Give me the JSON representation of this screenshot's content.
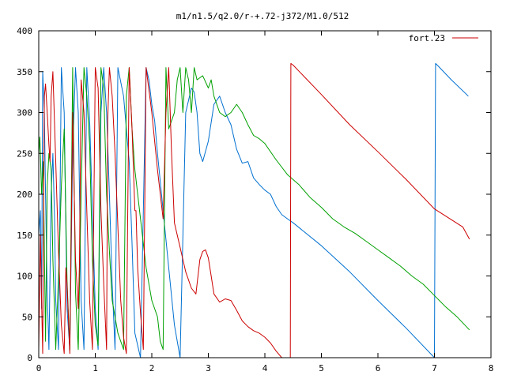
{
  "chart_data": {
    "type": "line",
    "title": "m1/n1.5/q2.0/r-+.72-j372/M1.0/512",
    "xlabel": "",
    "ylabel": "",
    "xlim": [
      0,
      8
    ],
    "ylim": [
      0,
      400
    ],
    "xticks": [
      0,
      1,
      2,
      3,
      4,
      5,
      6,
      7,
      8
    ],
    "yticks": [
      0,
      50,
      100,
      150,
      200,
      250,
      300,
      350,
      400
    ],
    "grid": false,
    "legend": {
      "position": "top-right",
      "entries": [
        "fort.23"
      ]
    },
    "series": [
      {
        "name": "fort.23",
        "color": "#cc0000",
        "x": [
          0.0,
          0.03,
          0.05,
          0.07,
          0.1,
          0.12,
          0.15,
          0.18,
          0.2,
          0.22,
          0.25,
          0.3,
          0.35,
          0.4,
          0.45,
          0.48,
          0.5,
          0.55,
          0.6,
          0.65,
          0.7,
          0.72,
          0.75,
          0.8,
          0.85,
          0.9,
          0.95,
          1.0,
          1.05,
          1.1,
          1.15,
          1.2,
          1.22,
          1.25,
          1.3,
          1.35,
          1.4,
          1.45,
          1.5,
          1.55,
          1.6,
          1.65,
          1.7,
          1.72,
          1.75,
          1.8,
          1.85,
          1.9,
          2.0,
          2.1,
          2.2,
          2.25,
          2.3,
          2.35,
          2.4,
          2.5,
          2.6,
          2.7,
          2.78,
          2.85,
          2.9,
          2.95,
          3.0,
          3.05,
          3.1,
          3.2,
          3.3,
          3.4,
          3.5,
          3.6,
          3.7,
          3.8,
          3.9,
          4.0,
          4.1,
          4.2,
          4.3,
          4.4,
          4.45,
          4.46,
          4.5,
          5.0,
          5.5,
          6.0,
          6.5,
          7.0,
          7.5,
          7.62
        ],
        "y": [
          10,
          150,
          70,
          5,
          320,
          335,
          300,
          260,
          240,
          320,
          350,
          240,
          130,
          40,
          5,
          110,
          90,
          5,
          300,
          120,
          60,
          115,
          340,
          300,
          180,
          70,
          10,
          355,
          330,
          180,
          90,
          10,
          290,
          355,
          320,
          250,
          160,
          70,
          25,
          5,
          355,
          280,
          180,
          180,
          110,
          55,
          10,
          355,
          300,
          230,
          170,
          300,
          355,
          250,
          165,
          135,
          105,
          85,
          78,
          120,
          130,
          132,
          122,
          100,
          78,
          68,
          72,
          70,
          58,
          45,
          38,
          33,
          30,
          25,
          18,
          8,
          0,
          0,
          0,
          360,
          358,
          322,
          285,
          252,
          218,
          182,
          160,
          145
        ]
      },
      {
        "name": "",
        "color": "#00a000",
        "x": [
          0.0,
          0.02,
          0.05,
          0.08,
          0.12,
          0.15,
          0.18,
          0.22,
          0.25,
          0.3,
          0.35,
          0.4,
          0.45,
          0.5,
          0.55,
          0.6,
          0.65,
          0.7,
          0.75,
          0.8,
          0.85,
          0.9,
          0.95,
          1.0,
          1.05,
          1.1,
          1.15,
          1.2,
          1.25,
          1.3,
          1.4,
          1.5,
          1.55,
          1.6,
          1.65,
          1.7,
          1.8,
          1.9,
          2.0,
          2.1,
          2.15,
          2.2,
          2.25,
          2.3,
          2.35,
          2.4,
          2.45,
          2.5,
          2.55,
          2.6,
          2.65,
          2.7,
          2.75,
          2.8,
          2.9,
          3.0,
          3.05,
          3.1,
          3.2,
          3.3,
          3.4,
          3.5,
          3.6,
          3.7,
          3.8,
          3.9,
          4.0,
          4.2,
          4.4,
          4.6,
          4.8,
          5.0,
          5.2,
          5.4,
          5.6,
          5.8,
          6.0,
          6.2,
          6.4,
          6.6,
          6.8,
          7.0,
          7.2,
          7.4,
          7.62
        ],
        "y": [
          250,
          270,
          200,
          240,
          20,
          210,
          250,
          230,
          120,
          10,
          100,
          210,
          280,
          95,
          10,
          355,
          80,
          10,
          200,
          355,
          320,
          260,
          120,
          40,
          15,
          355,
          330,
          200,
          130,
          70,
          30,
          10,
          320,
          355,
          280,
          230,
          170,
          110,
          70,
          50,
          20,
          10,
          355,
          280,
          290,
          300,
          340,
          355,
          300,
          355,
          340,
          300,
          355,
          340,
          345,
          330,
          340,
          320,
          300,
          295,
          300,
          310,
          300,
          285,
          272,
          268,
          262,
          242,
          224,
          212,
          196,
          184,
          170,
          160,
          152,
          142,
          132,
          122,
          112,
          100,
          90,
          76,
          62,
          50,
          34
        ]
      },
      {
        "name": "",
        "color": "#0070d0",
        "x": [
          0.0,
          0.03,
          0.05,
          0.07,
          0.1,
          0.12,
          0.15,
          0.18,
          0.22,
          0.25,
          0.28,
          0.3,
          0.35,
          0.4,
          0.45,
          0.5,
          0.55,
          0.6,
          0.65,
          0.7,
          0.75,
          0.8,
          0.85,
          0.9,
          0.95,
          1.0,
          1.05,
          1.1,
          1.15,
          1.2,
          1.25,
          1.3,
          1.35,
          1.4,
          1.5,
          1.6,
          1.65,
          1.7,
          1.8,
          1.9,
          1.95,
          2.0,
          2.05,
          2.1,
          2.2,
          2.3,
          2.4,
          2.5,
          2.6,
          2.7,
          2.75,
          2.8,
          2.85,
          2.9,
          3.0,
          3.1,
          3.2,
          3.3,
          3.4,
          3.5,
          3.6,
          3.7,
          3.8,
          3.9,
          4.0,
          4.1,
          4.2,
          4.3,
          4.4,
          4.5,
          5.0,
          5.5,
          6.0,
          6.5,
          7.0,
          7.02,
          7.05,
          7.3,
          7.6
        ],
        "y": [
          150,
          180,
          60,
          350,
          300,
          200,
          80,
          10,
          200,
          250,
          170,
          70,
          10,
          355,
          300,
          60,
          10,
          250,
          355,
          300,
          70,
          10,
          355,
          290,
          180,
          60,
          10,
          300,
          355,
          300,
          200,
          90,
          10,
          355,
          320,
          240,
          140,
          30,
          0,
          355,
          340,
          310,
          290,
          250,
          180,
          110,
          40,
          0,
          300,
          330,
          325,
          300,
          250,
          240,
          265,
          310,
          320,
          300,
          285,
          255,
          238,
          240,
          220,
          212,
          205,
          200,
          185,
          175,
          170,
          165,
          137,
          105,
          70,
          36,
          0,
          360,
          358,
          340,
          320
        ]
      }
    ]
  }
}
